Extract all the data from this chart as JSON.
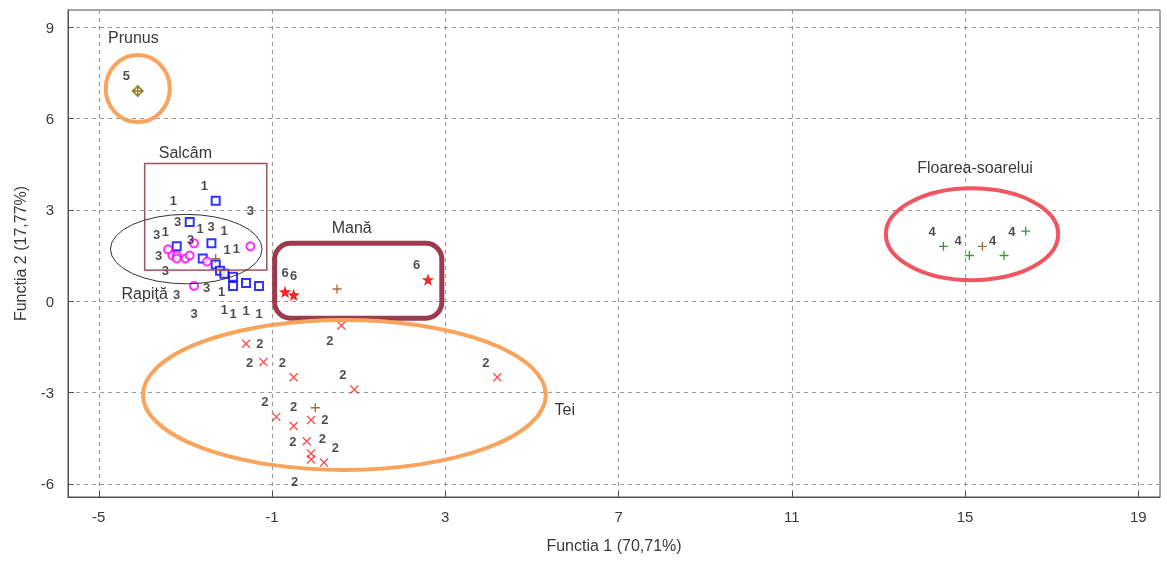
{
  "chart_data": {
    "type": "scatter",
    "xlabel": "Functia 1 (70,71%)",
    "ylabel": "Functia 2 (17,77%)",
    "xlim": [
      -5.71,
      19.5
    ],
    "xticks": [
      -5,
      -1,
      3,
      7,
      11,
      15,
      19
    ],
    "ylim": [
      -6.43,
      9.56
    ],
    "yticks": [
      -6,
      -3,
      0,
      3,
      6,
      9
    ],
    "grid": true,
    "series": [
      {
        "name": "1",
        "color": "#0000ff",
        "marker": "square",
        "x": [
          -2.3,
          -2.9,
          -2.4,
          -3.2,
          -2.6,
          -2.3,
          -2.2,
          -2.1,
          -1.9,
          -1.9,
          -1.6,
          -1.3
        ],
        "values": [
          3.3,
          2.6,
          1.9,
          1.8,
          1.4,
          1.2,
          1.0,
          0.9,
          0.8,
          0.5,
          0.6,
          0.5
        ]
      },
      {
        "name": "2",
        "color": "#ff2020",
        "marker": "cross",
        "x": [
          0.6,
          -1.6,
          -1.2,
          -0.5,
          0.9,
          4.2,
          -0.9,
          -0.5,
          -0.1,
          -0.2,
          -0.1,
          -0.1,
          0.2
        ],
        "values": [
          -0.8,
          -1.4,
          -2.0,
          -2.5,
          -2.9,
          -2.5,
          -3.8,
          -4.1,
          -3.9,
          -4.6,
          -5.0,
          -5.2,
          -5.3
        ]
      },
      {
        "name": "3",
        "color": "#ff00ff",
        "marker": "circle",
        "x": [
          -2.8,
          -1.5,
          -3.4,
          -3.3,
          -3.2,
          -3.0,
          -2.9,
          -3.2,
          -2.5,
          -2.8
        ],
        "values": [
          1.9,
          1.8,
          1.7,
          1.5,
          1.5,
          1.4,
          1.5,
          1.4,
          1.3,
          0.5
        ]
      },
      {
        "name": "4",
        "color": "#008000",
        "marker": "plus",
        "x": [
          14.5,
          15.1,
          15.9,
          16.4
        ],
        "values": [
          1.8,
          1.5,
          1.5,
          2.3
        ]
      },
      {
        "name": "5",
        "color": "#808000",
        "marker": "diamond",
        "x": [
          -4.1
        ],
        "values": [
          6.9
        ]
      },
      {
        "name": "6",
        "color": "#ff0000",
        "marker": "star",
        "x": [
          -0.7,
          -0.5,
          2.6
        ],
        "values": [
          0.3,
          0.2,
          0.7
        ]
      },
      {
        "color": "#8b4513",
        "marker": "plus",
        "x": [
          -4.1,
          -2.3,
          0.5,
          0.0,
          15.4
        ],
        "values": [
          6.9,
          1.4,
          0.4,
          -3.5,
          1.8
        ]
      }
    ],
    "annotations": [
      "Prunus",
      "Salcâm",
      "Rapiţă",
      "Mană",
      "Tei",
      "Floarea-soarelui"
    ]
  }
}
